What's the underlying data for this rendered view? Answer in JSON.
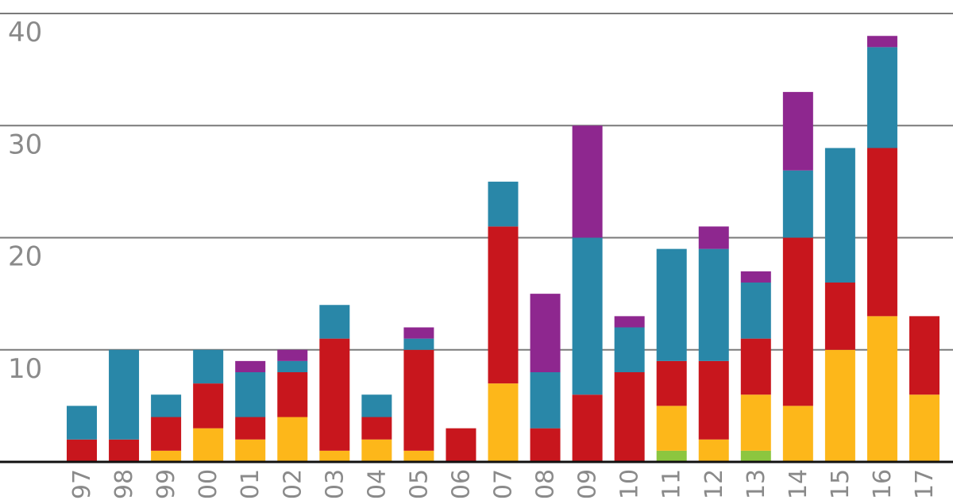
{
  "chart_data": {
    "type": "bar",
    "stacked": true,
    "categories": [
      "97",
      "98",
      "99",
      "00",
      "01",
      "02",
      "03",
      "04",
      "05",
      "06",
      "07",
      "08",
      "09",
      "10",
      "11",
      "12",
      "13",
      "14",
      "15",
      "16",
      "17"
    ],
    "series": [
      {
        "color": "#8cc63f",
        "values": [
          0,
          0,
          0,
          0,
          0,
          0,
          0,
          0,
          0,
          0,
          0,
          0,
          0,
          0,
          1,
          0,
          1,
          0,
          0,
          0,
          0
        ]
      },
      {
        "color": "#fdb71a",
        "values": [
          0,
          0,
          1,
          3,
          2,
          4,
          1,
          2,
          1,
          0,
          7,
          0,
          0,
          0,
          4,
          2,
          5,
          5,
          10,
          13,
          6
        ]
      },
      {
        "color": "#c8161d",
        "values": [
          2,
          2,
          3,
          4,
          2,
          4,
          10,
          2,
          9,
          3,
          14,
          3,
          6,
          8,
          4,
          7,
          5,
          15,
          6,
          15,
          7
        ]
      },
      {
        "color": "#2987a8",
        "values": [
          3,
          8,
          2,
          3,
          4,
          1,
          3,
          2,
          1,
          0,
          4,
          5,
          14,
          4,
          10,
          10,
          5,
          6,
          12,
          9,
          0
        ]
      },
      {
        "color": "#8e278f",
        "values": [
          0,
          0,
          0,
          0,
          1,
          1,
          0,
          0,
          1,
          0,
          0,
          7,
          10,
          1,
          0,
          2,
          1,
          7,
          0,
          1,
          0
        ]
      }
    ],
    "ylim": [
      0,
      40
    ],
    "yticks": [
      "10",
      "20",
      "30",
      "40"
    ],
    "grid": true
  }
}
